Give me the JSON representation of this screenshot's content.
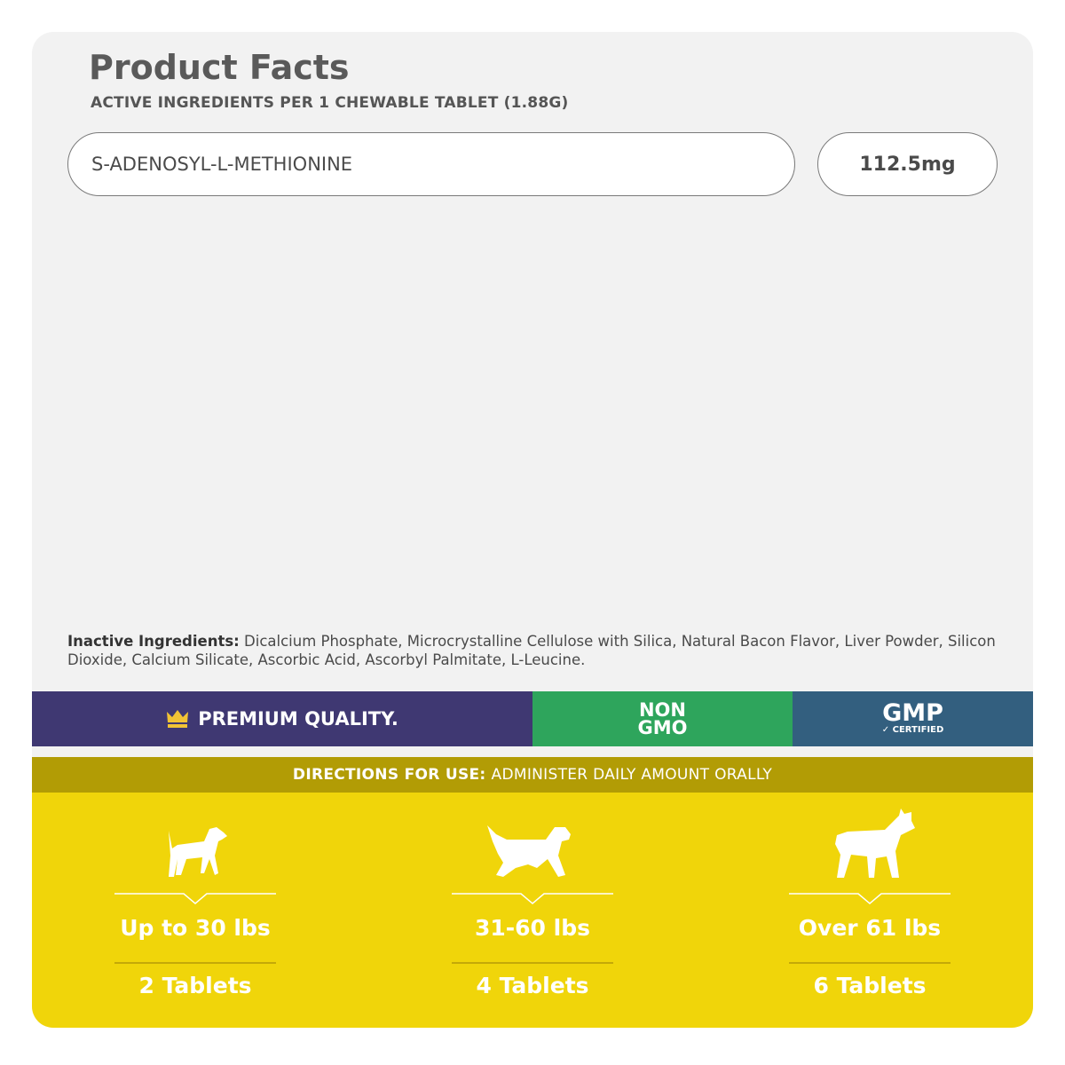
{
  "header": {
    "title": "Product Facts",
    "subtitle": "ACTIVE INGREDIENTS PER 1 CHEWABLE TABLET (1.88G)"
  },
  "active_ingredients": [
    {
      "name": "S-ADENOSYL-L-METHIONINE",
      "amount": "112.5mg"
    }
  ],
  "inactive": {
    "label": "Inactive Ingredients:",
    "text": "Dicalcium Phosphate, Microcrystalline Cellulose with Silica, Natural Bacon Flavor, Liver Powder, Silicon Dioxide, Calcium Silicate, Ascorbic Acid, Ascorbyl Palmitate, L-Leucine."
  },
  "badges": {
    "premium": "PREMIUM QUALITY.",
    "non_gmo_line1": "NON",
    "non_gmo_line2": "GMO",
    "gmp": "GMP",
    "gmp_sub": "CERTIFIED",
    "icon": "crown-icon"
  },
  "directions": {
    "label": "DIRECTIONS FOR USE:",
    "text": "ADMINISTER DAILY AMOUNT ORALLY"
  },
  "dosage": [
    {
      "weight": "Up to 30 lbs",
      "tablets": "2 Tablets",
      "icon": "small-dog-icon"
    },
    {
      "weight": "31-60 lbs",
      "tablets": "4 Tablets",
      "icon": "medium-dog-icon"
    },
    {
      "weight": "Over 61 lbs",
      "tablets": "6 Tablets",
      "icon": "large-dog-icon"
    }
  ],
  "colors": {
    "purple": "#3f3872",
    "green": "#2ea55c",
    "blue": "#335f7f",
    "olive": "#b29c05",
    "yellow": "#f0d50a",
    "crown": "#f2c335"
  }
}
